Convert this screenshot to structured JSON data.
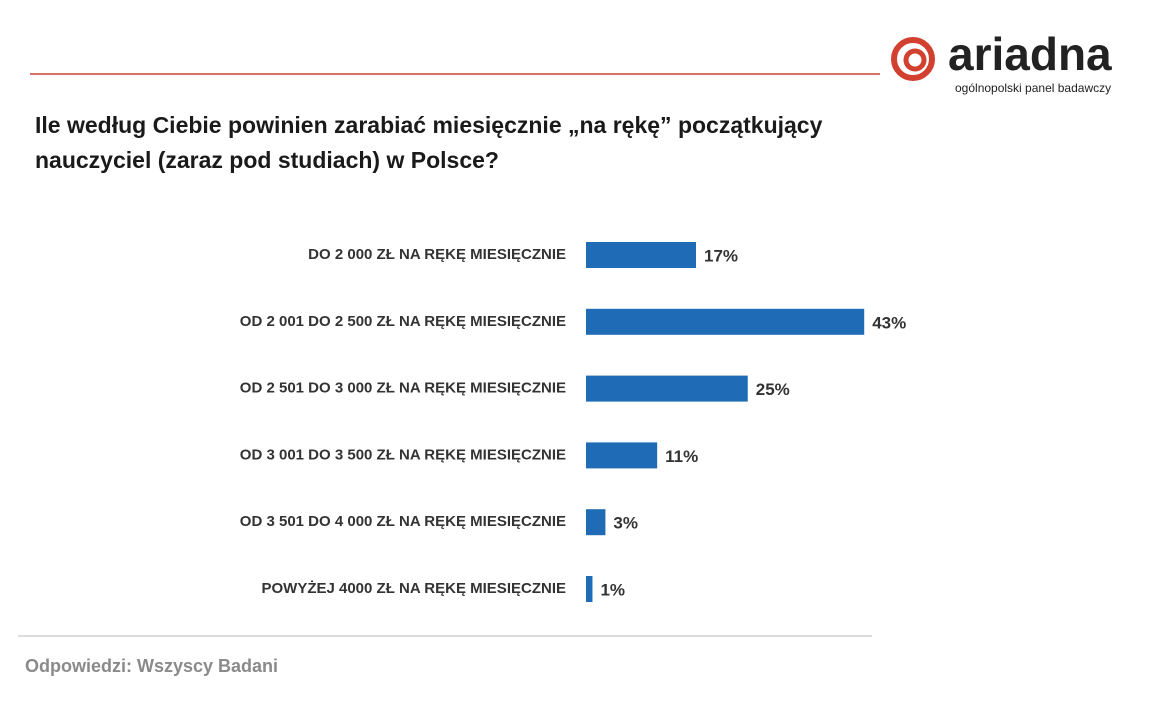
{
  "logo": {
    "name": "ariadna",
    "tagline": "ogólnopolski panel badawczy"
  },
  "chart_data": {
    "type": "bar",
    "orientation": "horizontal",
    "title": "Ile według Ciebie powinien zarabiać miesięcznie „na rękę” początkujący nauczyciel (zaraz pod studiach) w Polsce?",
    "categories": [
      "DO 2 000 ZŁ NA RĘKĘ MIESIĘCZNIE",
      "OD 2 001 DO 2 500 ZŁ NA RĘKĘ MIESIĘCZNIE",
      "OD 2 501 DO 3 000 ZŁ NA RĘKĘ MIESIĘCZNIE",
      "OD 3 001 DO 3 500 ZŁ NA RĘKĘ MIESIĘCZNIE",
      "OD 3 501 DO 4 000 ZŁ NA RĘKĘ MIESIĘCZNIE",
      "POWYŻEJ 4000 ZŁ NA RĘKĘ MIESIĘCZNIE"
    ],
    "values": [
      17,
      43,
      25,
      11,
      3,
      1
    ],
    "value_labels": [
      "17%",
      "43%",
      "25%",
      "11%",
      "3%",
      "1%"
    ],
    "color": "#1f6bb5",
    "note": "Odpowiedzi: Wszyscy Badani"
  }
}
